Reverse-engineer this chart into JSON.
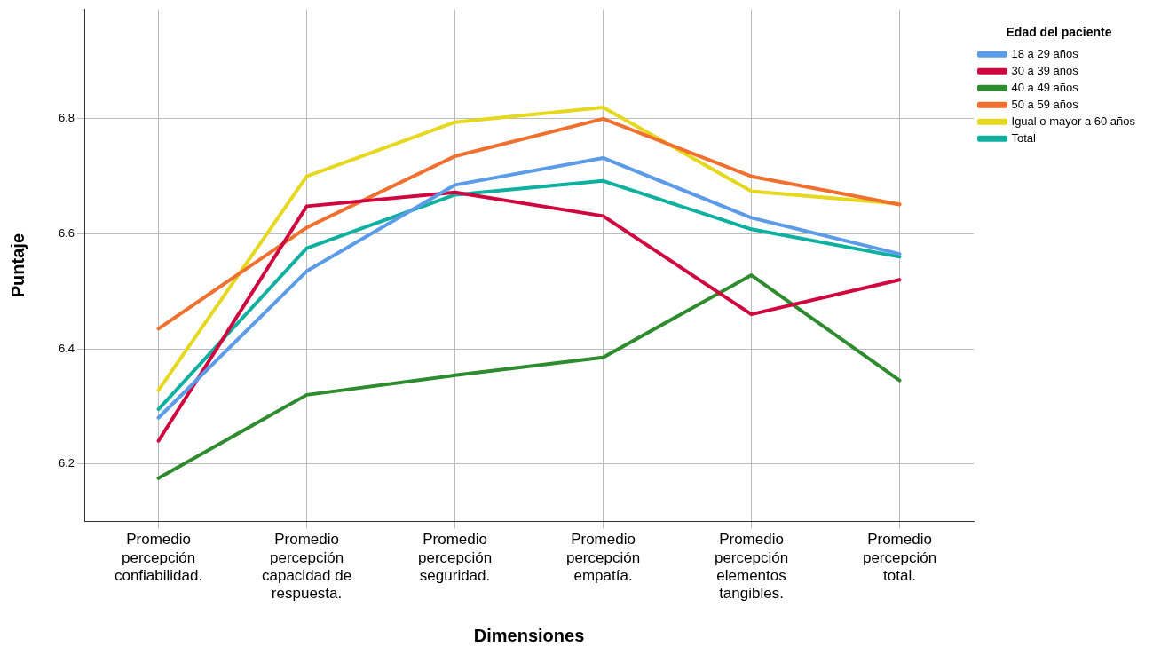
{
  "chart_data": {
    "type": "line",
    "xlabel": "Dimensiones",
    "ylabel": "Puntaje",
    "legend_title": "Edad del paciente",
    "legend": "top right",
    "grid": true,
    "marker": "none",
    "line_style": "solid",
    "categories": [
      "Promedio percepción confiabilidad.",
      "Promedio percepción capacidad de respuesta.",
      "Promedio percepción seguridad.",
      "Promedio percepción empatía.",
      "Promedio percepción elementos tangibles.",
      "Promedio percepción total."
    ],
    "ylim": [
      6.1,
      6.99
    ],
    "yticks": [
      6.2,
      6.4,
      6.6,
      6.8
    ],
    "series": [
      {
        "name": "18 a 29 años",
        "color": "#5b9be8",
        "values": [
          6.28,
          6.535,
          6.685,
          6.732,
          6.628,
          6.565
        ]
      },
      {
        "name": "30 a 39 años",
        "color": "#d0063f",
        "values": [
          6.24,
          6.648,
          6.672,
          6.631,
          6.46,
          6.52
        ]
      },
      {
        "name": "40 a 49 años",
        "color": "#2e8b2e",
        "values": [
          6.175,
          6.32,
          6.354,
          6.385,
          6.528,
          6.345
        ]
      },
      {
        "name": "50 a 59 años",
        "color": "#f07030",
        "values": [
          6.435,
          6.611,
          6.735,
          6.8,
          6.7,
          6.651
        ]
      },
      {
        "name": "Igual o mayor a 60 años",
        "color": "#e6d81e",
        "values": [
          6.328,
          6.7,
          6.794,
          6.82,
          6.674,
          6.652
        ]
      },
      {
        "name": "Total",
        "color": "#10b0a0",
        "values": [
          6.295,
          6.575,
          6.668,
          6.692,
          6.608,
          6.56
        ]
      }
    ]
  }
}
